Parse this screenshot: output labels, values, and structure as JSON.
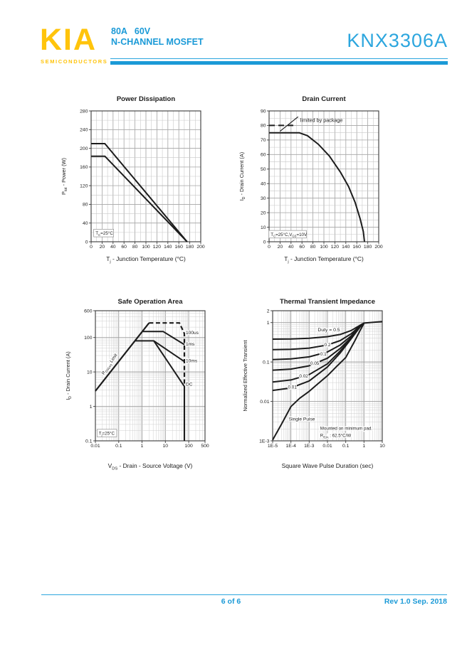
{
  "header": {
    "logo": "KIA",
    "logo_sub": "SEMICONDUCTORS",
    "rating": "80A   60V",
    "family": "N-CHANNEL MOSFET",
    "part_number": "KNX3306A",
    "accent_yellow": "#FFC40C",
    "accent_blue": "#1B9AD7",
    "accent_cyan": "#2CA6DE"
  },
  "footer": {
    "page": "6 of 6",
    "revision": "Rev 1.0 Sep. 2018"
  },
  "chart_data": [
    {
      "id": "power-dissipation",
      "type": "line",
      "title": "Power Dissipation",
      "x": {
        "scale": "linear",
        "min": 0,
        "max": 200,
        "minor": 10,
        "ticks": [
          [
            0,
            "0"
          ],
          [
            20,
            "20"
          ],
          [
            40,
            "40"
          ],
          [
            60,
            "60"
          ],
          [
            80,
            "80"
          ],
          [
            100,
            "100"
          ],
          [
            120,
            "120"
          ],
          [
            140,
            "140"
          ],
          [
            160,
            "160"
          ],
          [
            180,
            "180"
          ],
          [
            200,
            "200"
          ]
        ]
      },
      "y": {
        "scale": "linear",
        "min": 0,
        "max": 280,
        "minor": 20,
        "ticks": [
          [
            0,
            "0"
          ],
          [
            40,
            "40"
          ],
          [
            80,
            "80"
          ],
          [
            120,
            "120"
          ],
          [
            160,
            "160"
          ],
          [
            200,
            "200"
          ],
          [
            240,
            "240"
          ],
          [
            280,
            "280"
          ]
        ]
      },
      "xlabel": [
        {
          "t": "T"
        },
        {
          "t": "j",
          "sub": true
        },
        {
          "t": " - Junction Temperature (°C)"
        }
      ],
      "ylabel": [
        {
          "t": "P"
        },
        {
          "t": "tot",
          "sub": true
        },
        {
          "t": " - Power (W)"
        }
      ],
      "series": [
        {
          "name": "ptot-upper",
          "points": [
            [
              0,
              210
            ],
            [
              25,
              210
            ],
            [
              175,
              0
            ]
          ]
        },
        {
          "name": "ptot-lower",
          "points": [
            [
              0,
              183
            ],
            [
              25,
              183
            ],
            [
              175,
              0
            ]
          ]
        }
      ],
      "annotations": [
        {
          "segs": [
            {
              "t": "T"
            },
            {
              "t": "C",
              "sub": true
            },
            {
              "t": "=25°C"
            }
          ],
          "x": 8,
          "y": 15,
          "size": 6.3,
          "anchor": "start",
          "box": true
        }
      ]
    },
    {
      "id": "drain-current",
      "type": "line",
      "title": "Drain Current",
      "x": {
        "scale": "linear",
        "min": 0,
        "max": 200,
        "minor": 10,
        "ticks": [
          [
            0,
            "0"
          ],
          [
            20,
            "20"
          ],
          [
            40,
            "40"
          ],
          [
            60,
            "60"
          ],
          [
            80,
            "80"
          ],
          [
            100,
            "100"
          ],
          [
            120,
            "120"
          ],
          [
            140,
            "140"
          ],
          [
            160,
            "160"
          ],
          [
            180,
            "180"
          ],
          [
            200,
            "200"
          ]
        ]
      },
      "y": {
        "scale": "linear",
        "min": 0,
        "max": 90,
        "minor": 5,
        "ticks": [
          [
            0,
            "0"
          ],
          [
            10,
            "10"
          ],
          [
            20,
            "20"
          ],
          [
            30,
            "30"
          ],
          [
            40,
            "40"
          ],
          [
            50,
            "50"
          ],
          [
            60,
            "60"
          ],
          [
            70,
            "70"
          ],
          [
            80,
            "80"
          ],
          [
            90,
            "90"
          ]
        ]
      },
      "xlabel": [
        {
          "t": "T"
        },
        {
          "t": "j",
          "sub": true
        },
        {
          "t": " - Junction Temperature (°C)"
        }
      ],
      "ylabel": [
        {
          "t": "I"
        },
        {
          "t": "D",
          "sub": true
        },
        {
          "t": " - Drain Current (A)"
        }
      ],
      "series": [
        {
          "name": "id-package-limit",
          "dash": "8 5",
          "points": [
            [
              0,
              80
            ],
            [
              46,
              80
            ]
          ]
        },
        {
          "name": "id-vs-temperature",
          "points": [
            [
              0,
              75
            ],
            [
              55,
              75
            ],
            [
              70,
              73
            ],
            [
              90,
              67
            ],
            [
              110,
              59
            ],
            [
              130,
              48
            ],
            [
              145,
              38
            ],
            [
              157,
              27
            ],
            [
              166,
              16
            ],
            [
              172,
              7
            ],
            [
              174,
              0
            ]
          ]
        }
      ],
      "annotations": [
        {
          "text": "limited by package",
          "x": 57,
          "y": 82.5,
          "size": 7.2,
          "anchor": "start"
        },
        {
          "segs": [
            {
              "t": "T"
            },
            {
              "t": "C",
              "sub": true
            },
            {
              "t": "=25°C,V"
            },
            {
              "t": "GS",
              "sub": true
            },
            {
              "t": "=10V"
            }
          ],
          "x": 3,
          "y": 4,
          "size": 6.2,
          "anchor": "start",
          "box": true
        }
      ],
      "lines": [
        {
          "points": [
            [
              20,
              76
            ],
            [
              53,
              86
            ]
          ],
          "width": 1.1
        }
      ]
    },
    {
      "id": "safe-operation-area",
      "type": "line",
      "title": "Safe Operation Area",
      "x": {
        "scale": "log",
        "min": 0.01,
        "max": 500,
        "ticks": [
          [
            0.01,
            "0.01"
          ],
          [
            0.1,
            "0.1"
          ],
          [
            1,
            "1"
          ],
          [
            10,
            "10"
          ],
          [
            100,
            "100"
          ],
          [
            500,
            "500"
          ]
        ]
      },
      "y": {
        "scale": "log",
        "min": 0.1,
        "max": 600,
        "ticks": [
          [
            0.1,
            "0.1"
          ],
          [
            1,
            "1"
          ],
          [
            10,
            "10"
          ],
          [
            100,
            "100"
          ],
          [
            600,
            "600"
          ]
        ]
      },
      "xlabel": [
        {
          "t": "V"
        },
        {
          "t": "DS",
          "sub": true
        },
        {
          "t": " - Drain - Source Voltage (V)"
        }
      ],
      "ylabel": [
        {
          "t": "I"
        },
        {
          "t": "D",
          "sub": true
        },
        {
          "t": " - Drain Current (A)"
        }
      ],
      "series": [
        {
          "name": "rdson-limit-line",
          "points": [
            [
              0.01,
              2.8
            ],
            [
              2.0,
              265
            ]
          ],
          "width": 2.2
        },
        {
          "name": "soa-100us",
          "dash": "6 3.5",
          "points": [
            [
              2.0,
              265
            ],
            [
              40,
              265
            ],
            [
              65,
              130
            ],
            [
              65,
              4.0
            ]
          ],
          "width": 2.2
        },
        {
          "name": "soa-1ms",
          "points": [
            [
              1.03,
              150
            ],
            [
              8,
              150
            ],
            [
              65,
              62
            ]
          ],
          "width": 2
        },
        {
          "name": "soa-10ms",
          "points": [
            [
              0.49,
              80
            ],
            [
              3.2,
              80
            ],
            [
              65,
              20
            ]
          ],
          "width": 2
        },
        {
          "name": "soa-dc",
          "points": [
            [
              3.2,
              80
            ],
            [
              65,
              3.8
            ],
            [
              65,
              0.1
            ]
          ],
          "width": 2
        }
      ],
      "annotations": [
        {
          "text": "100us",
          "x": 75,
          "y": 125,
          "size": 6.6,
          "anchor": "start",
          "halo": true
        },
        {
          "text": "1ms",
          "x": 75,
          "y": 58,
          "size": 6.6,
          "anchor": "start",
          "halo": true
        },
        {
          "text": "10ms",
          "x": 75,
          "y": 19,
          "size": 6.6,
          "anchor": "start",
          "halo": true
        },
        {
          "text": "DC",
          "x": 75,
          "y": 4.0,
          "size": 6.6,
          "anchor": "start",
          "halo": true
        },
        {
          "segs": [
            {
              "t": "R"
            },
            {
              "t": "DS(on)",
              "sub": true
            },
            {
              "t": " Limit"
            }
          ],
          "x": 0.045,
          "y": 16,
          "size": 6.4,
          "anchor": "middle",
          "rotate": -56,
          "halo": true
        },
        {
          "segs": [
            {
              "t": "T"
            },
            {
              "t": "j",
              "sub": true
            },
            {
              "t": "=25°C"
            }
          ],
          "x": 0.014,
          "y": 0.15,
          "size": 6.2,
          "anchor": "start",
          "box": true
        }
      ]
    },
    {
      "id": "thermal-transient-impedance",
      "type": "line",
      "title": "Thermal Transient Impedance",
      "x": {
        "scale": "log",
        "min": 1e-05,
        "max": 10,
        "ticks": [
          [
            1e-05,
            "1E-5"
          ],
          [
            0.0001,
            "1E-4"
          ],
          [
            0.001,
            "1E-3"
          ],
          [
            0.01,
            "0.01"
          ],
          [
            0.1,
            "0.1"
          ],
          [
            1,
            "1"
          ],
          [
            10,
            "10"
          ]
        ]
      },
      "y": {
        "scale": "log",
        "min": 0.001,
        "max": 2,
        "ticks": [
          [
            2,
            "2"
          ],
          [
            1,
            "1"
          ],
          [
            0.1,
            "0.1"
          ],
          [
            0.01,
            "0.01"
          ],
          [
            0.001,
            "1E-3"
          ]
        ]
      },
      "xlabel": [
        {
          "t": "Square Wave Pulse Duration (sec)"
        }
      ],
      "ylabel": [
        {
          "t": "Normalized Effective Transient"
        }
      ],
      "series": [
        {
          "name": "duty-0.5",
          "points": [
            [
              1e-05,
              0.38
            ],
            [
              0.0001,
              0.385
            ],
            [
              0.001,
              0.4
            ],
            [
              0.01,
              0.44
            ],
            [
              0.05,
              0.5
            ],
            [
              0.2,
              0.63
            ],
            [
              0.6,
              0.85
            ],
            [
              1,
              0.97
            ],
            [
              10,
              1.06
            ]
          ]
        },
        {
          "name": "duty-0.2",
          "points": [
            [
              1e-05,
              0.205
            ],
            [
              0.0001,
              0.21
            ],
            [
              0.001,
              0.225
            ],
            [
              0.01,
              0.27
            ],
            [
              0.05,
              0.35
            ],
            [
              0.2,
              0.52
            ],
            [
              0.6,
              0.82
            ],
            [
              1,
              0.97
            ]
          ]
        },
        {
          "name": "duty-0.1",
          "points": [
            [
              1e-05,
              0.115
            ],
            [
              0.0001,
              0.12
            ],
            [
              0.001,
              0.135
            ],
            [
              0.01,
              0.18
            ],
            [
              0.05,
              0.27
            ],
            [
              0.2,
              0.46
            ],
            [
              0.6,
              0.8
            ],
            [
              1,
              0.97
            ]
          ]
        },
        {
          "name": "duty-0.05",
          "points": [
            [
              1e-05,
              0.062
            ],
            [
              0.0001,
              0.066
            ],
            [
              0.001,
              0.08
            ],
            [
              0.01,
              0.125
            ],
            [
              0.05,
              0.22
            ],
            [
              0.2,
              0.42
            ],
            [
              0.6,
              0.78
            ],
            [
              1,
              0.97
            ]
          ]
        },
        {
          "name": "duty-0.02",
          "points": [
            [
              1e-05,
              0.031
            ],
            [
              0.0001,
              0.035
            ],
            [
              0.001,
              0.048
            ],
            [
              0.01,
              0.09
            ],
            [
              0.05,
              0.19
            ],
            [
              0.2,
              0.4
            ],
            [
              0.6,
              0.77
            ],
            [
              1,
              0.97
            ]
          ]
        },
        {
          "name": "duty-0.01",
          "points": [
            [
              1e-05,
              0.019
            ],
            [
              0.0001,
              0.022
            ],
            [
              0.001,
              0.033
            ],
            [
              0.01,
              0.075
            ],
            [
              0.05,
              0.17
            ],
            [
              0.2,
              0.39
            ],
            [
              0.6,
              0.77
            ],
            [
              1,
              0.97
            ]
          ]
        },
        {
          "name": "single-pulse",
          "points": [
            [
              1e-05,
              0.00105
            ],
            [
              3e-05,
              0.0026
            ],
            [
              0.0001,
              0.0074
            ],
            [
              0.0003,
              0.012
            ],
            [
              0.001,
              0.018
            ],
            [
              0.003,
              0.028
            ],
            [
              0.01,
              0.045
            ],
            [
              0.03,
              0.075
            ],
            [
              0.1,
              0.13
            ],
            [
              0.3,
              0.33
            ],
            [
              0.6,
              0.62
            ],
            [
              1,
              0.95
            ]
          ]
        }
      ],
      "annotations": [
        {
          "text": "Duty = 0.5",
          "x": 0.012,
          "y": 0.6,
          "size": 6.8,
          "anchor": "middle",
          "halo": true
        },
        {
          "text": "0.2",
          "x": 0.01,
          "y": 0.25,
          "size": 6.4,
          "anchor": "middle",
          "halo": true
        },
        {
          "text": "0.1",
          "x": 0.006,
          "y": 0.145,
          "size": 6.4,
          "anchor": "middle",
          "halo": true
        },
        {
          "text": "0.05",
          "x": 0.002,
          "y": 0.085,
          "size": 6.4,
          "anchor": "middle",
          "halo": true
        },
        {
          "text": "0.02",
          "x": 0.0005,
          "y": 0.04,
          "size": 6.4,
          "anchor": "middle",
          "halo": true
        },
        {
          "text": "0.01",
          "x": 0.00012,
          "y": 0.021,
          "size": 6.4,
          "anchor": "middle",
          "halo": true
        },
        {
          "text": "Single Pulse",
          "x": 0.0004,
          "y": 0.0033,
          "size": 6.6,
          "anchor": "middle",
          "halo": true
        },
        {
          "text": "Mounted on minimum pad.",
          "x": 0.004,
          "y": 0.0019,
          "size": 6.2,
          "anchor": "start",
          "halo": true
        },
        {
          "segs": [
            {
              "t": "R"
            },
            {
              "t": "θJA",
              "sub": true
            },
            {
              "t": " : 62.5°C/W"
            }
          ],
          "x": 0.004,
          "y": 0.00125,
          "size": 6.2,
          "anchor": "start",
          "halo": true
        }
      ]
    }
  ]
}
